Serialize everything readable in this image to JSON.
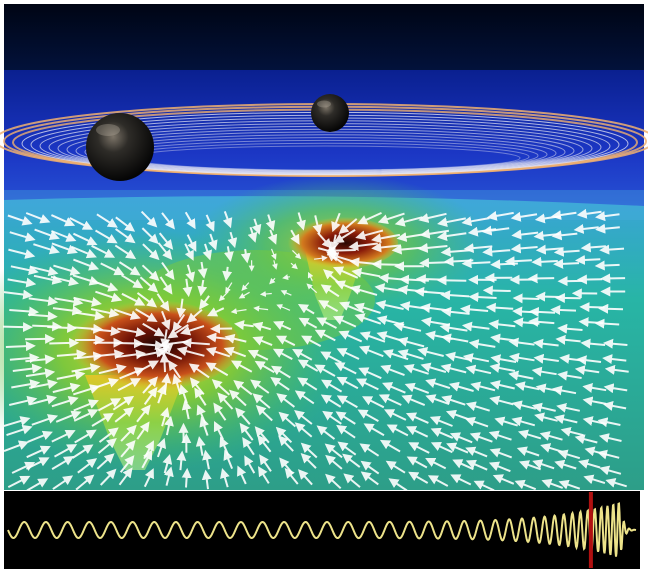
{
  "image": {
    "subject": "binary-black-hole-merger-visualization",
    "panels": [
      "simulation-view",
      "gravitational-waveform"
    ]
  },
  "colors": {
    "frame": "#ffffff",
    "space_top": "#03091a",
    "orbit_plane": "#1a2fb0",
    "field_cyan": "#2bb3a8",
    "field_green": "#4ec44a",
    "field_yellow": "#d8d020",
    "well_red": "#8a1608",
    "arrow": "#ffffff",
    "wave": "#ede38a",
    "wave_bg": "#000000",
    "marker": "#b01010"
  },
  "icons": {
    "large_body": "black-hole-sphere",
    "small_body": "black-hole-sphere",
    "vectors": "arrow-glyph",
    "marker": "vertical-red-line"
  },
  "waveform": {
    "cycles_before_marker": 30,
    "marker_fraction": 0.925,
    "chirp_peak_fraction": 0.975
  }
}
